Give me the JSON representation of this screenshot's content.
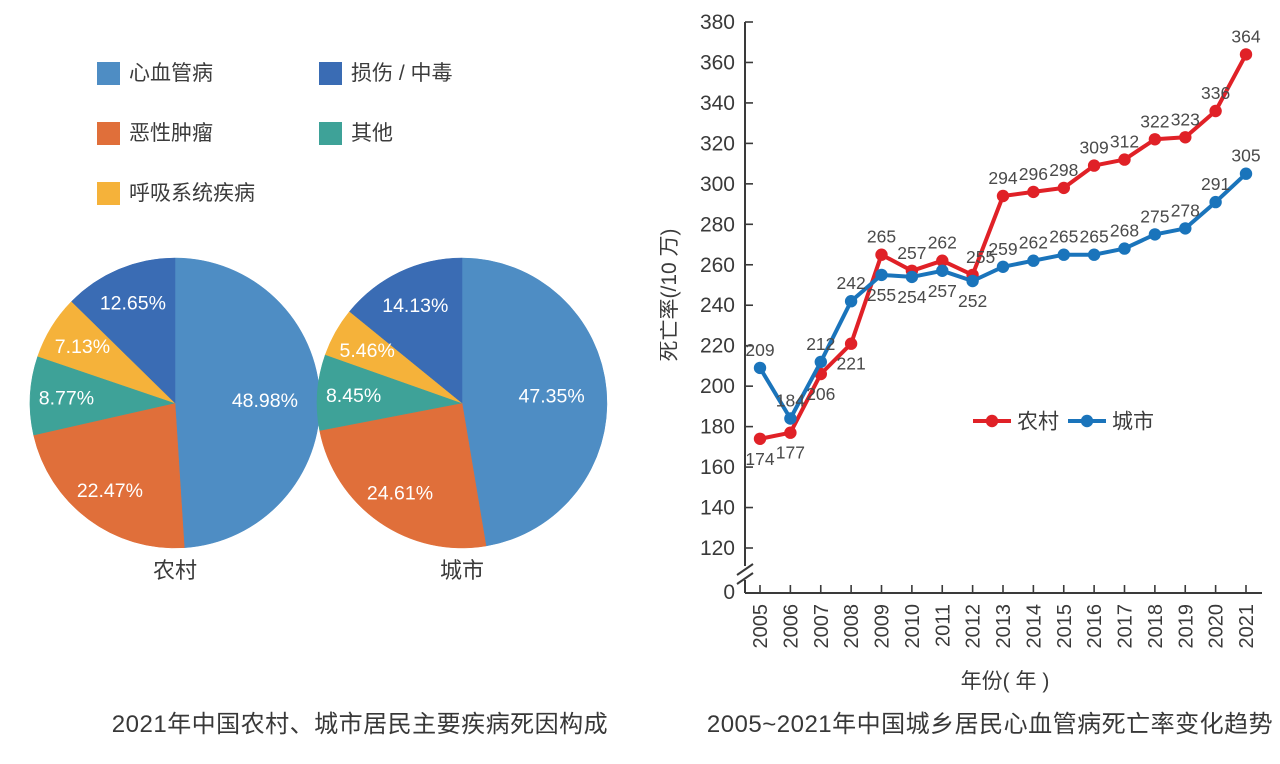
{
  "left_chart": {
    "caption": "2021年中国农村、城市居民主要疾病死因构成",
    "legend": [
      {
        "label": "心血管病",
        "color": "#4E8DC4"
      },
      {
        "label": "恶性肿瘤",
        "color": "#E06F3A"
      },
      {
        "label": "呼吸系统疾病",
        "color": "#F5B23A"
      },
      {
        "label": "损伤 / 中毒",
        "color": "#3A6CB4"
      },
      {
        "label": "其他",
        "color": "#3EA298"
      }
    ]
  },
  "right_chart": {
    "caption": "2005~2021年中国城乡居民心血管病死亡率变化趋势"
  },
  "colors": {
    "axis": "#3a3a3a",
    "tick_label": "#3a3a3a",
    "data_label": "#4a4a4a",
    "pie_label": "#ffffff"
  },
  "chart_data": [
    {
      "type": "pie",
      "name": "rural-pie",
      "title": "农村",
      "slices": [
        {
          "label": "心血管病",
          "value": 48.98,
          "color": "#4E8DC4"
        },
        {
          "label": "恶性肿瘤",
          "value": 22.47,
          "color": "#E06F3A"
        },
        {
          "label": "其他",
          "value": 8.77,
          "color": "#3EA298"
        },
        {
          "label": "呼吸系统疾病",
          "value": 7.13,
          "color": "#F5B23A"
        },
        {
          "label": "损伤 / 中毒",
          "value": 12.65,
          "color": "#3A6CB4"
        }
      ],
      "label_format": "percent",
      "start_angle": "top",
      "direction": "clockwise"
    },
    {
      "type": "pie",
      "name": "urban-pie",
      "title": "城市",
      "slices": [
        {
          "label": "心血管病",
          "value": 47.35,
          "color": "#4E8DC4"
        },
        {
          "label": "恶性肿瘤",
          "value": 24.61,
          "color": "#E06F3A"
        },
        {
          "label": "其他",
          "value": 8.45,
          "color": "#3EA298"
        },
        {
          "label": "呼吸系统疾病",
          "value": 5.46,
          "color": "#F5B23A"
        },
        {
          "label": "损伤 / 中毒",
          "value": 14.13,
          "color": "#3A6CB4"
        }
      ],
      "label_format": "percent",
      "start_angle": "top",
      "direction": "clockwise"
    },
    {
      "type": "line",
      "name": "mortality-trend",
      "xlabel": "年份( 年 )",
      "ylabel": "死亡率(/10 万)",
      "x": [
        "2005",
        "2006",
        "2007",
        "2008",
        "2009",
        "2010",
        "2011",
        "2012",
        "2013",
        "2014",
        "2015",
        "2016",
        "2017",
        "2018",
        "2019",
        "2020",
        "2021"
      ],
      "ylim": [
        120,
        380
      ],
      "ytick_step": 20,
      "baseline_label": "0",
      "axis_break_to_zero": true,
      "legend_position": "inside-middle-right",
      "series": [
        {
          "name": "农村",
          "color": "#E02127",
          "values": [
            174,
            177,
            206,
            221,
            265,
            257,
            262,
            255,
            294,
            296,
            298,
            309,
            312,
            322,
            323,
            336,
            364
          ],
          "label_offsets": [
            "below",
            "below",
            "below",
            "below",
            "above",
            "above",
            "above",
            "above",
            "above",
            "above",
            "above",
            "above",
            "above",
            "above",
            "above",
            "above",
            "above"
          ]
        },
        {
          "name": "城市",
          "color": "#1A74BB",
          "values": [
            209,
            184,
            212,
            242,
            255,
            254,
            257,
            252,
            259,
            262,
            265,
            265,
            268,
            275,
            278,
            291,
            305
          ],
          "label_offsets": [
            "above",
            "above",
            "above",
            "above",
            "below",
            "below",
            "below",
            "below",
            "above",
            "above",
            "above",
            "above",
            "above",
            "above",
            "above",
            "above",
            "above"
          ]
        }
      ]
    }
  ]
}
